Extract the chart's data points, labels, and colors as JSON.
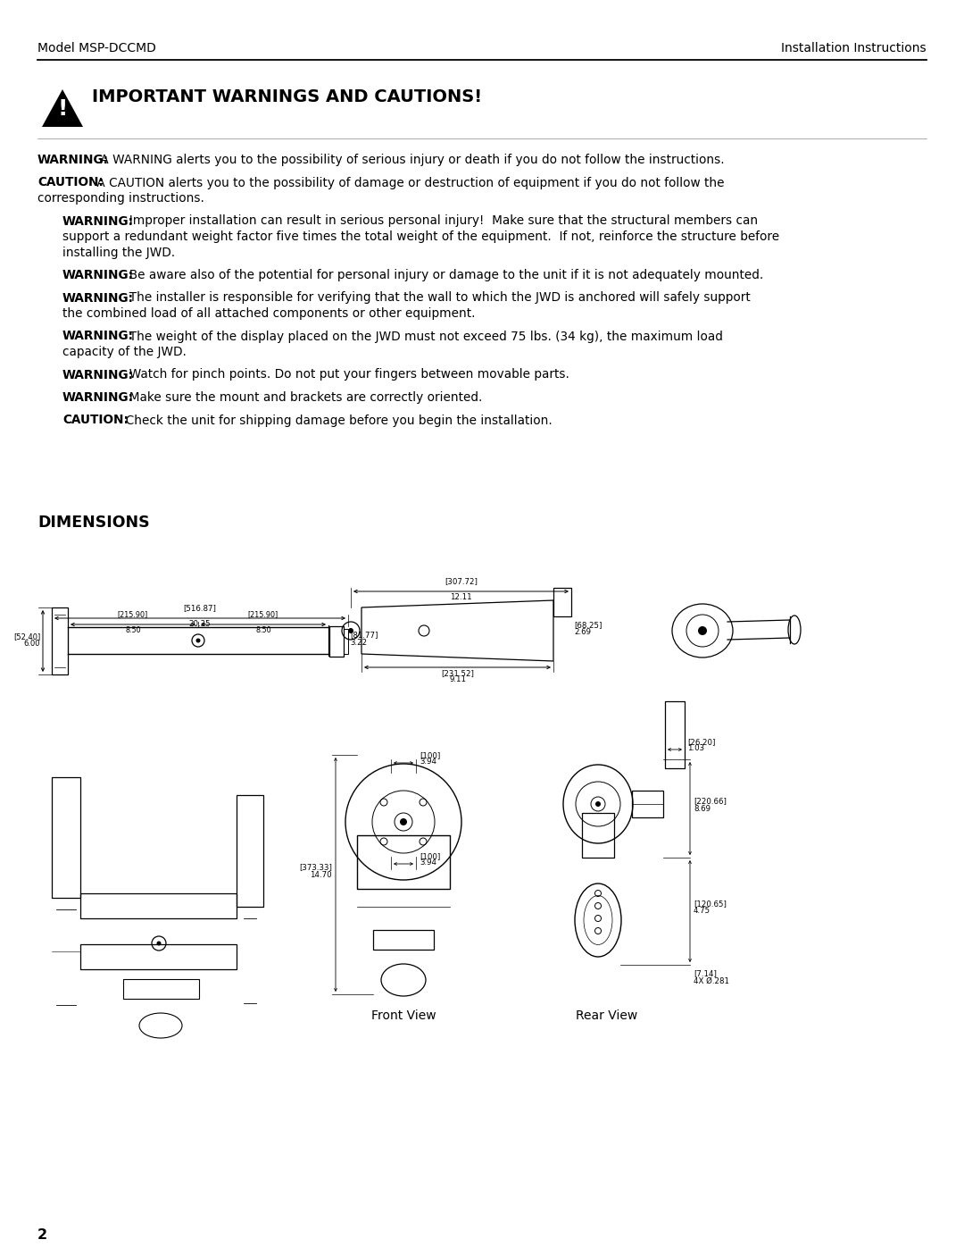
{
  "header_left": "Model MSP-DCCMD",
  "header_right": "Installation Instructions",
  "section_title": "IMPORTANT WARNINGS AND CAUTIONS!",
  "warnings": [
    {
      "label": "WARNING:",
      "text": " A WARNING alerts you to the possibility of serious injury or death if you do not follow the instructions.",
      "indented": false,
      "extra_lines": []
    },
    {
      "label": "CAUTION:",
      "text": " A CAUTION alerts you to the possibility of damage or destruction of equipment if you do not follow the",
      "indented": false,
      "extra_lines": [
        "corresponding instructions."
      ]
    },
    {
      "label": "WARNING:",
      "text": "  Improper installation can result in serious personal injury!  Make sure that the structural members can",
      "indented": true,
      "extra_lines": [
        "support a redundant weight factor five times the total weight of the equipment.  If not, reinforce the structure before",
        "installing the JWD."
      ]
    },
    {
      "label": "WARNING:",
      "text": "  Be aware also of the potential for personal injury or damage to the unit if it is not adequately mounted.",
      "indented": true,
      "extra_lines": []
    },
    {
      "label": "WARNING:",
      "text": "  The installer is responsible for verifying that the wall to which the JWD is anchored will safely support",
      "indented": true,
      "extra_lines": [
        "the combined load of all attached components or other equipment."
      ]
    },
    {
      "label": "WARNING:",
      "text": "  The weight of the display placed on the JWD must not exceed 75 lbs. (34 kg), the maximum load",
      "indented": true,
      "extra_lines": [
        "capacity of the JWD."
      ]
    },
    {
      "label": "WARNING:",
      "text": "  Watch for pinch points. Do not put your fingers between movable parts.",
      "indented": true,
      "extra_lines": []
    },
    {
      "label": "WARNING:",
      "text": "  Make sure the mount and brackets are correctly oriented.",
      "indented": true,
      "extra_lines": []
    },
    {
      "label": "CAUTION:",
      "text": "  Check the unit for shipping damage before you begin the installation.",
      "indented": true,
      "extra_lines": []
    }
  ],
  "dimensions_title": "DIMENSIONS",
  "front_view_label": "Front View",
  "rear_view_label": "Rear View",
  "page_number": "2",
  "bg_color": "#ffffff",
  "text_color": "#000000"
}
